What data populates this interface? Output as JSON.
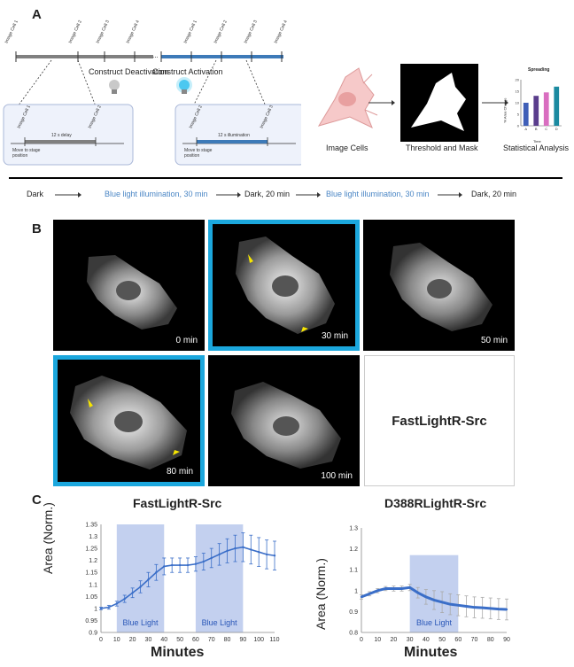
{
  "panel_a": {
    "letter": "A",
    "timeline_left": {
      "ticks": [
        "Image Cell 1",
        "Image Cell 2",
        "Image Cell 3",
        "Image Cell 4"
      ],
      "ellipsis": "...",
      "caption": "Construct Deactivation",
      "detail": {
        "ticks": [
          "Image Cell 1",
          "Image Cell 2"
        ],
        "interval": "12 s delay",
        "move": "Move to stage position"
      }
    },
    "timeline_right": {
      "ticks": [
        "Image Cell 1",
        "Image Cell 2",
        "Image Cell 3",
        "Image Cell 4"
      ],
      "caption": "Construct Activation",
      "detail": {
        "ticks": [
          "Image Cell 2",
          "Image Cell 3"
        ],
        "interval": "12 s illumination",
        "move": "Move to stage position"
      }
    },
    "workflow": {
      "steps": [
        "Image Cells",
        "Threshold and Mask",
        "Statistical Analysis"
      ],
      "mini_chart": {
        "title": "Spreading",
        "ylabel": "% Area Change",
        "xlabel": "Time",
        "categories": [
          "A",
          "B",
          "C",
          "D"
        ],
        "values": [
          10,
          13,
          14.5,
          17
        ],
        "ylim": [
          0,
          20
        ],
        "yticks": [
          "0",
          "5",
          "10",
          "15",
          "20"
        ],
        "colors": [
          "#3f5fb8",
          "#5a3d8c",
          "#d96ec0",
          "#1b8aa0"
        ]
      }
    },
    "protocol": [
      {
        "label": "Dark",
        "blue": false
      },
      {
        "label": "Blue light illumination, 30 min",
        "blue": true
      },
      {
        "label": "Dark, 20 min",
        "blue": false
      },
      {
        "label": "Blue light illumination, 30 min",
        "blue": true
      },
      {
        "label": "Dark, 20 min",
        "blue": false
      }
    ]
  },
  "panel_b": {
    "letter": "B",
    "images": [
      {
        "time": "0 min",
        "illuminated": false
      },
      {
        "time": "30 min",
        "illuminated": true
      },
      {
        "time": "50 min",
        "illuminated": false
      },
      {
        "time": "80 min",
        "illuminated": true
      },
      {
        "time": "100 min",
        "illuminated": false
      }
    ],
    "construct_label": "FastLightR-Src"
  },
  "panel_c": {
    "letter": "C",
    "chart_data": [
      {
        "type": "line",
        "title": "FastLightR-Src",
        "xlabel": "Minutes",
        "ylabel": "Area (Norm.)",
        "xlim": [
          0,
          110
        ],
        "ylim": [
          0.9,
          1.35
        ],
        "xticks": [
          "0",
          "10",
          "20",
          "30",
          "40",
          "50",
          "60",
          "70",
          "80",
          "90",
          "100",
          "110"
        ],
        "yticks": [
          "0.9",
          "0.95",
          "1",
          "1.05",
          "1.1",
          "1.15",
          "1.2",
          "1.25",
          "1.3",
          "1.35"
        ],
        "shaded_regions": [
          {
            "from": 10,
            "to": 40,
            "label": "Blue Light"
          },
          {
            "from": 60,
            "to": 90,
            "label": "Blue Light"
          }
        ],
        "series": [
          {
            "color": "#3a6ec8",
            "x": [
              0,
              5,
              10,
              15,
              20,
              25,
              30,
              35,
              40,
              45,
              50,
              55,
              60,
              65,
              70,
              75,
              80,
              85,
              90,
              95,
              100,
              105,
              110
            ],
            "y": [
              1.0,
              1.005,
              1.02,
              1.04,
              1.065,
              1.09,
              1.12,
              1.15,
              1.175,
              1.18,
              1.18,
              1.18,
              1.185,
              1.195,
              1.21,
              1.225,
              1.24,
              1.25,
              1.255,
              1.245,
              1.235,
              1.225,
              1.22
            ],
            "err": [
              0.005,
              0.008,
              0.01,
              0.015,
              0.02,
              0.025,
              0.03,
              0.033,
              0.035,
              0.03,
              0.03,
              0.03,
              0.03,
              0.035,
              0.04,
              0.045,
              0.05,
              0.055,
              0.06,
              0.06,
              0.06,
              0.06,
              0.06
            ]
          }
        ]
      },
      {
        "type": "line",
        "title": "D388RLightR-Src",
        "xlabel": "Minutes",
        "ylabel": "Area (Norm.)",
        "xlim": [
          0,
          90
        ],
        "ylim": [
          0.8,
          1.3
        ],
        "xticks": [
          "0",
          "10",
          "20",
          "30",
          "40",
          "50",
          "60",
          "70",
          "80",
          "90"
        ],
        "yticks": [
          "0.8",
          "0.9",
          "1",
          "1.1",
          "1.2",
          "1.3"
        ],
        "shaded_regions": [
          {
            "from": 30,
            "to": 60,
            "label": "Blue Light"
          }
        ],
        "series": [
          {
            "color": "#3a6ec8",
            "x": [
              0,
              5,
              10,
              15,
              20,
              25,
              30,
              35,
              40,
              45,
              50,
              55,
              60,
              65,
              70,
              75,
              80,
              85,
              90
            ],
            "y": [
              0.97,
              0.985,
              1.0,
              1.01,
              1.01,
              1.01,
              1.015,
              0.99,
              0.97,
              0.955,
              0.945,
              0.935,
              0.93,
              0.925,
              0.92,
              0.918,
              0.915,
              0.912,
              0.91
            ],
            "err": [
              0.01,
              0.01,
              0.01,
              0.01,
              0.012,
              0.012,
              0.015,
              0.025,
              0.035,
              0.045,
              0.05,
              0.05,
              0.05,
              0.05,
              0.05,
              0.05,
              0.05,
              0.05,
              0.05
            ]
          }
        ]
      }
    ]
  }
}
